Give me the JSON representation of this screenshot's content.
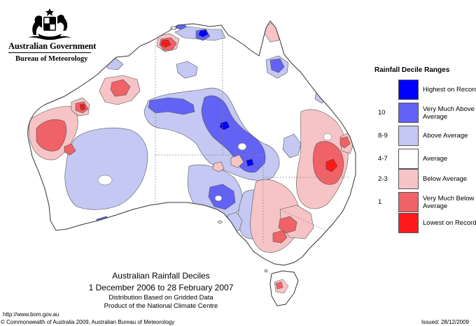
{
  "header": {
    "government": "Australian Government",
    "bureau": "Bureau of Meteorology"
  },
  "legend": {
    "title": "Rainfall Decile Ranges",
    "items": [
      {
        "decile": "",
        "label": "Highest on Record",
        "color": "#0000ff"
      },
      {
        "decile": "10",
        "label": "Very Much Above Average",
        "color": "#6262f4"
      },
      {
        "decile": "8-9",
        "label": "Above Average",
        "color": "#c4c8f2"
      },
      {
        "decile": "4-7",
        "label": "Average",
        "color": "#ffffff"
      },
      {
        "decile": "2-3",
        "label": "Below Average",
        "color": "#f6c4c6"
      },
      {
        "decile": "1",
        "label": "Very Much Below Average",
        "color": "#ef6267"
      },
      {
        "decile": "",
        "label": "Lowest on Record",
        "color": "#ff1a1a"
      }
    ]
  },
  "map": {
    "title": "Australian Rainfall Deciles",
    "period": "1 December 2006 to 28 February 2007",
    "basis": "Distribution Based on Gridded Data",
    "product": "Product of the National Climate Centre"
  },
  "footer": {
    "url": "http://www.bom.gov.au",
    "copyright": "© Commonwealth of Australia 2009, Australian Bureau of Meteorology",
    "issued": "Issued: 28/12/2009"
  }
}
